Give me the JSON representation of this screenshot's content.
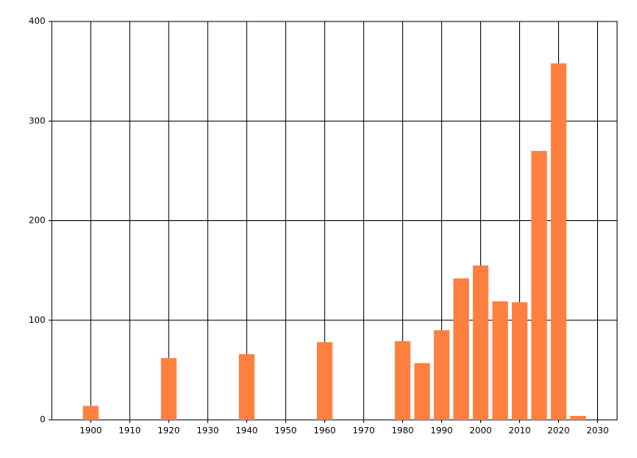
{
  "chart_data": {
    "type": "bar",
    "x": [
      1900,
      1920,
      1940,
      1960,
      1980,
      1985,
      1990,
      1995,
      2000,
      2005,
      2010,
      2015,
      2020,
      2025
    ],
    "values": [
      14,
      62,
      66,
      78,
      79,
      57,
      90,
      142,
      155,
      119,
      118,
      270,
      358,
      4
    ],
    "color": "#ff7f3f",
    "xlim": [
      1890,
      2035
    ],
    "xticks": [
      1900,
      1910,
      1920,
      1930,
      1940,
      1950,
      1960,
      1970,
      1980,
      1990,
      2000,
      2010,
      2020,
      2030
    ],
    "ylim": [
      0,
      400
    ],
    "yticks": [
      0,
      100,
      200,
      300,
      400
    ],
    "grid": true
  }
}
